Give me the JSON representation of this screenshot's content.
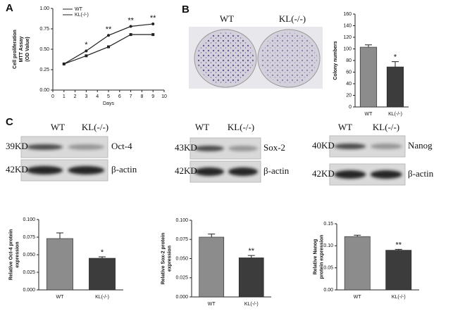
{
  "chart_data": [
    {
      "type": "line",
      "xlabel": "Days",
      "ylabel": [
        "Cell proliferation",
        "MTT Assay",
        "(OD Value)"
      ],
      "x": [
        1,
        3,
        5,
        7,
        9
      ],
      "series": [
        {
          "name": "WT",
          "color": "#222222",
          "values": [
            0.32,
            0.48,
            0.67,
            0.78,
            0.81
          ]
        },
        {
          "name": "KL(-/-)",
          "color": "#222222",
          "values": [
            0.32,
            0.42,
            0.53,
            0.68,
            0.68
          ]
        }
      ],
      "annotations": [
        {
          "x": 3,
          "text": "*"
        },
        {
          "x": 5,
          "text": "**"
        },
        {
          "x": 7,
          "text": "**"
        },
        {
          "x": 9,
          "text": "**"
        }
      ],
      "xlim": [
        0,
        10
      ],
      "xticks": [
        0,
        1,
        2,
        3,
        4,
        5,
        6,
        7,
        8,
        9,
        10
      ],
      "ylim": [
        0,
        1
      ],
      "yticks": [
        {
          "value": 0,
          "label": "0.00"
        },
        {
          "value": 0.25,
          "label": "0.25"
        },
        {
          "value": 0.5,
          "label": "0.50"
        },
        {
          "value": 0.75,
          "label": "0.75"
        },
        {
          "value": 1,
          "label": "1.00"
        }
      ]
    },
    {
      "type": "bar",
      "ylabel": [
        "Colony numbers"
      ],
      "categories": [
        "WT",
        "KL(-/-)"
      ],
      "values": [
        103,
        69
      ],
      "errors": [
        4,
        9
      ],
      "colors": [
        "#8c8c8c",
        "#3c3c3c"
      ],
      "annotation": "*",
      "ylim": [
        0,
        160
      ],
      "yticks": [
        0,
        20,
        40,
        60,
        80,
        100,
        120,
        140,
        160
      ]
    },
    {
      "type": "bar",
      "ylabel": [
        "Relative Oct-4 protein",
        "expression"
      ],
      "categories": [
        "WT",
        "KL(-/-)"
      ],
      "values": [
        0.073,
        0.045
      ],
      "errors": [
        0.008,
        0.002
      ],
      "colors": [
        "#8c8c8c",
        "#3c3c3c"
      ],
      "annotation": "*",
      "ylim": [
        0,
        0.1
      ],
      "yticks": [
        {
          "value": 0,
          "label": "0.000"
        },
        {
          "value": 0.025,
          "label": "0.025"
        },
        {
          "value": 0.05,
          "label": "0.050"
        },
        {
          "value": 0.075,
          "label": "0.075"
        },
        {
          "value": 0.1,
          "label": "0.100"
        }
      ]
    },
    {
      "type": "bar",
      "ylabel": [
        "Relative Sox-2 protein",
        "expression"
      ],
      "categories": [
        "WT",
        "KL(-/-)"
      ],
      "values": [
        0.078,
        0.051
      ],
      "errors": [
        0.004,
        0.003
      ],
      "colors": [
        "#8c8c8c",
        "#3c3c3c"
      ],
      "annotation": "**",
      "ylim": [
        0,
        0.1
      ],
      "yticks": [
        {
          "value": 0,
          "label": "0.000"
        },
        {
          "value": 0.025,
          "label": "0.025"
        },
        {
          "value": 0.05,
          "label": "0.050"
        },
        {
          "value": 0.075,
          "label": "0.075"
        },
        {
          "value": 0.1,
          "label": "0.100"
        }
      ]
    },
    {
      "type": "bar",
      "ylabel": [
        "Relative Nanog",
        "protein expression"
      ],
      "categories": [
        "WT",
        "KL(-/-)"
      ],
      "values": [
        0.121,
        0.09
      ],
      "errors": [
        0.003,
        0.002
      ],
      "colors": [
        "#8c8c8c",
        "#3c3c3c"
      ],
      "annotation": "**",
      "ylim": [
        0,
        0.15
      ],
      "yticks": [
        {
          "value": 0,
          "label": "0.00"
        },
        {
          "value": 0.05,
          "label": "0.05"
        },
        {
          "value": 0.1,
          "label": "0.10"
        },
        {
          "value": 0.15,
          "label": "0.15"
        }
      ]
    }
  ],
  "figure": {
    "panel_labels": [
      "A",
      "B",
      "C"
    ],
    "dish_labels": [
      "WT",
      "KL(-/-)"
    ],
    "blots": [
      {
        "lanes": [
          "WT",
          "KL(-/-)"
        ],
        "target_kd": "39KD",
        "target": "Oct-4",
        "control_kd": "42KD",
        "control": "β-actin"
      },
      {
        "lanes": [
          "WT",
          "KL(-/-)"
        ],
        "target_kd": "43KD",
        "target": "Sox-2",
        "control_kd": "42KD",
        "control": "β-actin"
      },
      {
        "lanes": [
          "WT",
          "KL(-/-)"
        ],
        "target_kd": "40KD",
        "target": "Nanog",
        "control_kd": "42KD",
        "control": "β-actin"
      }
    ]
  }
}
